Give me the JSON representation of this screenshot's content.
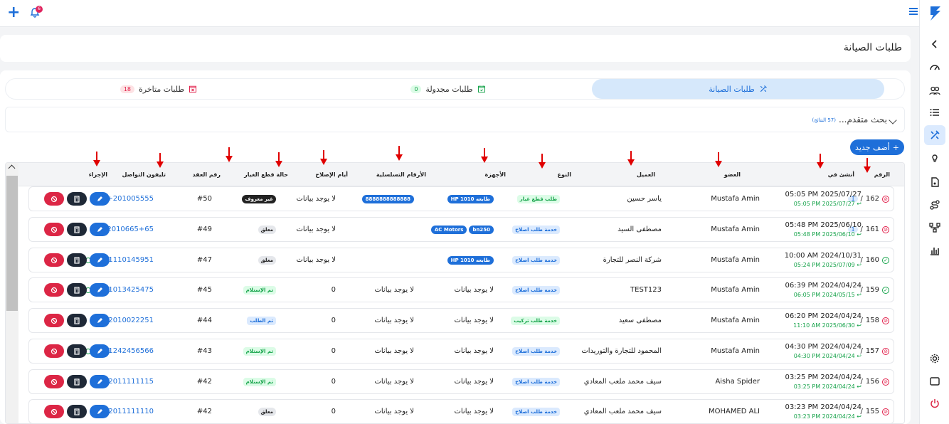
{
  "topbar": {
    "notification_count": "6"
  },
  "page": {
    "title": "طلبات الصيانة"
  },
  "tabs": [
    {
      "label": "طلبات الصيانة",
      "count": ""
    },
    {
      "label": "طلبات مجدولة",
      "count": "0"
    },
    {
      "label": "طلبات متاخرة",
      "count": "18"
    }
  ],
  "search": {
    "label": "بحث متقدم...",
    "results": "(57 النتائج)"
  },
  "add_button": {
    "label": "أضف جديد"
  },
  "columns": {
    "number": "الرقم",
    "created": "أنشئ في",
    "member": "العضو",
    "client": "العميل",
    "type": "النوع",
    "devices": "الأجهزة",
    "serials": "الأرقام التسلسلية",
    "repair_days": "أيام الإصلاح",
    "parts_status": "حالة قطع الغيار",
    "contract": "رقم العقد",
    "phone": "تليفون التواصل",
    "action": "الإجراء"
  },
  "rows": [
    {
      "id": "162",
      "badge": "1",
      "status": "red",
      "created": "05:05 PM 2025/07/27",
      "updated": "05:05 PM 2025/07/27 ↩",
      "member": "Mustafa Amin",
      "client": "ياسر حسين",
      "type": "طلب قطع غيار",
      "type_style": "green-light",
      "devices": [
        "طابعه HP 1010"
      ],
      "serials": [
        "8888888888888"
      ],
      "repair_days": "لا يوجد بيانات",
      "parts": "غير معروف",
      "parts_style": "dark",
      "contract": "#50",
      "phone": "+201005555"
    },
    {
      "id": "161",
      "badge": "1",
      "status": "red",
      "created": "05:48 PM 2025/06/10",
      "updated": "05:48 PM 2025/06/10 ↩",
      "member": "Mustafa Amin",
      "client": "مصطفى السيد",
      "type": "خدمة طلب اصلاح",
      "type_style": "blue-light",
      "devices": [
        "bn250",
        "AC Motors"
      ],
      "serials": [],
      "repair_days": "لا يوجد بيانات",
      "parts": "معلق",
      "parts_style": "gray",
      "contract": "#49",
      "phone": "+2010665+65"
    },
    {
      "id": "160",
      "badge": "",
      "status": "green",
      "created": "10:00 AM 2024/10/31",
      "updated": "05:24 PM 2025/07/09 ↩",
      "member": "Mustafa Amin",
      "client": "شركة النصر للتجارة",
      "type": "خدمة طلب اصلاح",
      "type_style": "blue-light",
      "devices": [
        "طابعه HP 1010"
      ],
      "serials": [],
      "repair_days": "لا يوجد بيانات",
      "parts": "معلق",
      "parts_style": "gray",
      "contract": "#47",
      "phone": "+201110145951"
    },
    {
      "id": "159",
      "badge": "",
      "status": "green",
      "created": "06:39 PM 2024/04/24",
      "updated": "06:05 PM 2024/05/15 ↩",
      "member": "Mustafa Amin",
      "client": "TEST123",
      "type": "خدمة طلب اصلاح",
      "type_style": "blue-light",
      "devices_text": "لا يوجد بيانات",
      "serials_text": "لا يوجد بيانات",
      "repair_days": "0",
      "parts": "تم الإستلام",
      "parts_style": "green-light",
      "contract": "#45",
      "phone": "+201013425475"
    },
    {
      "id": "158",
      "badge": "",
      "status": "red",
      "created": "06:20 PM 2024/04/24",
      "updated": "11:10 AM 2025/06/30 ↩",
      "member": "Mustafa Amin",
      "client": "مصطفى سعيد",
      "type": "خدمة طلب تركيب",
      "type_style": "green-light",
      "devices_text": "لا يوجد بيانات",
      "serials_text": "لا يوجد بيانات",
      "repair_days": "0",
      "parts": "تم الطلب",
      "parts_style": "blue-light",
      "contract": "#44",
      "phone": "+2010022251"
    },
    {
      "id": "157",
      "badge": "",
      "status": "red",
      "created": "04:30 PM 2024/04/24",
      "updated": "04:30 PM 2024/04/24 ↩",
      "member": "Mustafa Amin",
      "client": "المحمود للتجارة والتوريدات",
      "type": "خدمة طلب اصلاح",
      "type_style": "blue-light",
      "devices_text": "لا يوجد بيانات",
      "serials_text": "لا يوجد بيانات",
      "repair_days": "0",
      "parts": "تم الإستلام",
      "parts_style": "green-light",
      "contract": "#43",
      "phone": "+201242456566"
    },
    {
      "id": "156",
      "badge": "",
      "status": "red",
      "created": "03:25 PM 2024/04/24",
      "updated": "03:25 PM 2024/04/24 ↩",
      "member": "Aisha Spider",
      "client": "سيف محمد ملعب المعادي",
      "type": "خدمة طلب اصلاح",
      "type_style": "blue-light",
      "devices_text": "لا يوجد بيانات",
      "serials_text": "لا يوجد بيانات",
      "repair_days": "0",
      "parts": "تم الإستلام",
      "parts_style": "green-light",
      "contract": "#42",
      "phone": "+2011111115"
    },
    {
      "id": "155",
      "badge": "",
      "status": "red",
      "created": "03:23 PM 2024/04/24",
      "updated": "03:23 PM 2024/04/24 ↩",
      "member": "MOHAMED ALI",
      "client": "سيف محمد ملعب المعادي",
      "type": "خدمة طلب اصلاح",
      "type_style": "blue-light",
      "devices_text": "لا يوجد بيانات",
      "serials_text": "لا يوجد بيانات",
      "repair_days": "0",
      "parts": "معلق",
      "parts_style": "gray",
      "contract": "#42",
      "phone": "+2011111110"
    }
  ],
  "colors": {
    "accent": "#1e6fd9",
    "danger": "#dc2645",
    "success": "#16a34a",
    "annotation": "#e00000"
  },
  "icons": [
    "plus-icon",
    "bell-icon",
    "hamburger-icon",
    "logo-icon",
    "chevron-left-icon",
    "dashboard-icon",
    "users-icon",
    "list-icon",
    "tools-icon",
    "lightbulb-icon",
    "document-icon",
    "route-icon",
    "network-icon",
    "bar-chart-icon",
    "settings-icon",
    "window-icon",
    "power-icon",
    "whatsapp-icon",
    "edit-icon",
    "calculator-icon",
    "cancel-icon"
  ]
}
